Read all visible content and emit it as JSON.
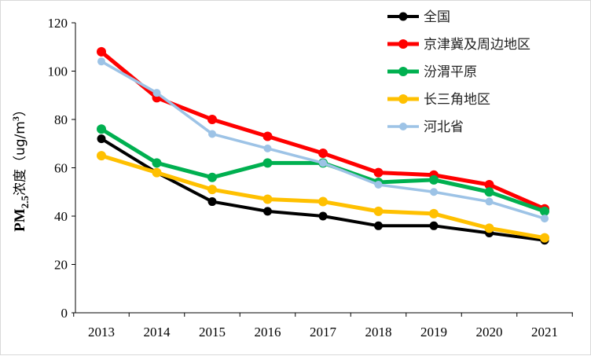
{
  "chart_data": {
    "type": "line",
    "title": "",
    "xlabel": "",
    "ylabel_main": "PM",
    "ylabel_sub": "2.5",
    "ylabel_rest": "浓度（ug/m",
    "ylabel_sup": "3",
    "ylabel_end": "）",
    "ylim": [
      0,
      120
    ],
    "yticks": [
      "0",
      "20",
      "40",
      "60",
      "80",
      "100",
      "120"
    ],
    "categories": [
      "2013",
      "2014",
      "2015",
      "2016",
      "2017",
      "2018",
      "2019",
      "2020",
      "2021"
    ],
    "legend_position": "top-right",
    "series": [
      {
        "name": "全国",
        "color": "#000000",
        "values": [
          72,
          58,
          46,
          42,
          40,
          36,
          36,
          33,
          30
        ]
      },
      {
        "name": "京津冀及周边地区",
        "color": "#ff0000",
        "values": [
          108,
          89,
          80,
          73,
          66,
          58,
          57,
          53,
          43
        ]
      },
      {
        "name": "汾渭平原",
        "color": "#00b050",
        "values": [
          76,
          62,
          56,
          62,
          62,
          54,
          55,
          50,
          42
        ]
      },
      {
        "name": "长三角地区",
        "color": "#ffc000",
        "values": [
          65,
          58,
          51,
          47,
          46,
          42,
          41,
          35,
          31
        ]
      },
      {
        "name": "河北省",
        "color": "#9dc3e6",
        "values": [
          104,
          91,
          74,
          68,
          62,
          53,
          50,
          46,
          39
        ]
      }
    ]
  }
}
